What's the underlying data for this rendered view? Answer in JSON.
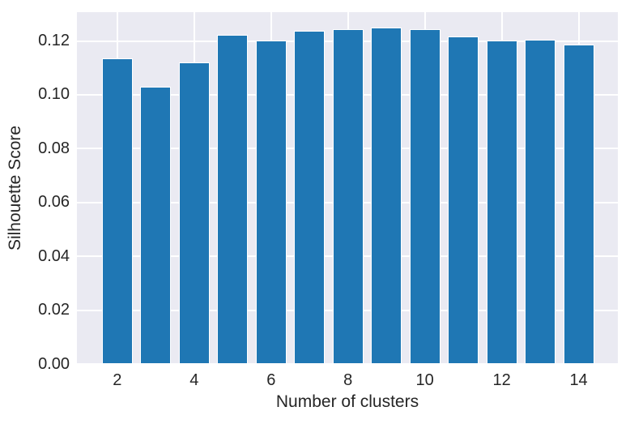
{
  "chart_data": {
    "type": "bar",
    "title": "",
    "xlabel": "Number of clusters",
    "ylabel": "Silhouette Score",
    "categories": [
      2,
      3,
      4,
      5,
      6,
      7,
      8,
      9,
      10,
      11,
      12,
      13,
      14
    ],
    "values": [
      0.1135,
      0.103,
      0.112,
      0.1222,
      0.1201,
      0.1238,
      0.1244,
      0.125,
      0.1243,
      0.1218,
      0.1202,
      0.1205,
      0.1188
    ],
    "bar_width": 0.8,
    "x_ticks": [
      2,
      4,
      6,
      8,
      10,
      12,
      14
    ],
    "x_tick_labels": [
      "2",
      "4",
      "6",
      "8",
      "10",
      "12",
      "14"
    ],
    "y_ticks": [
      0,
      0.02,
      0.04,
      0.06,
      0.08,
      0.1,
      0.12
    ],
    "y_tick_labels": [
      "0.00",
      "0.02",
      "0.04",
      "0.06",
      "0.08",
      "0.10",
      "0.12"
    ],
    "xlim": [
      0.95,
      15.02
    ],
    "ylim": [
      0,
      0.1307
    ],
    "grid": true,
    "legend": null,
    "style": "seaborn-darkgrid",
    "colors": {
      "bar": "#1f77b4",
      "bar_edge": "#ffffff",
      "axes_bg": "#eaeaf2",
      "grid": "#ffffff",
      "text": "#262626",
      "figure_bg": "#ffffff"
    }
  }
}
